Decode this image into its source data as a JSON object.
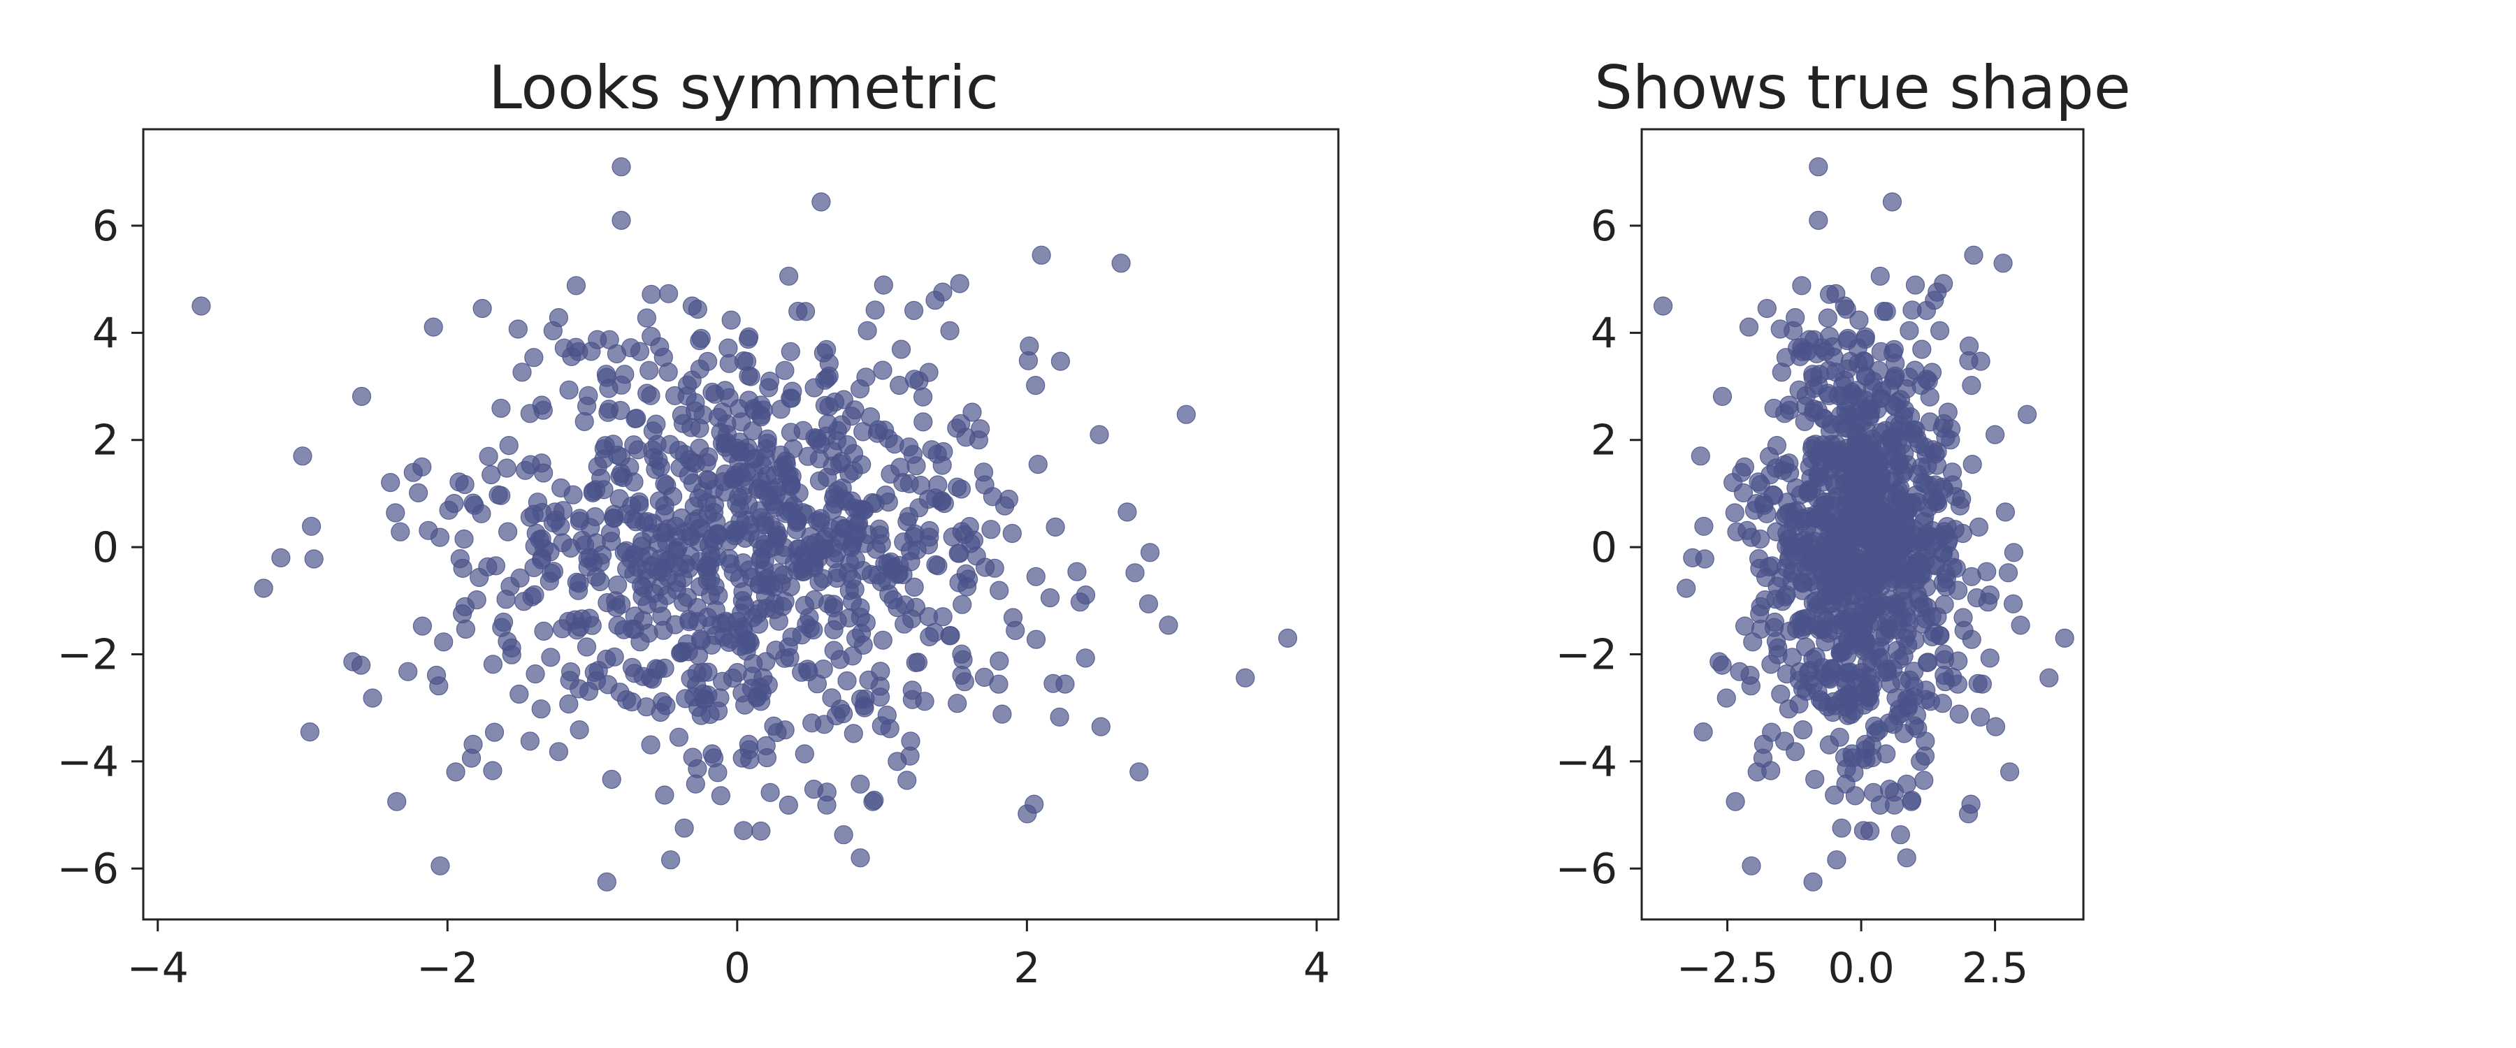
{
  "chart_data": [
    {
      "type": "scatter",
      "title": "Looks symmetric",
      "xlabel": "",
      "ylabel": "",
      "xlim": [
        -4.1,
        4.15
      ],
      "ylim": [
        -6.95,
        7.8
      ],
      "xticks": [
        -4,
        -2,
        0,
        2,
        4
      ],
      "xtick_labels": [
        "−4",
        "−2",
        "0",
        "2",
        "4"
      ],
      "yticks": [
        -6,
        -4,
        -2,
        0,
        2,
        4,
        6
      ],
      "ytick_labels": [
        "−6",
        "−4",
        "−2",
        "0",
        "2",
        "4",
        "6"
      ],
      "aspect": "auto",
      "grid": false,
      "marker_color": "#4a5289",
      "n_points": 1000,
      "point_distribution": "bivariate normal, mean (0, 0), sd_x ≈ 1.0, sd_y ≈ 2.0",
      "outliers": [
        {
          "x": -3.7,
          "y": 4.5
        },
        {
          "x": -0.8,
          "y": 7.1
        },
        {
          "x": -0.8,
          "y": 6.1
        },
        {
          "x": 3.8,
          "y": -1.7
        },
        {
          "x": 2.85,
          "y": -0.1
        },
        {
          "x": -3.15,
          "y": -0.2
        },
        {
          "x": -3.0,
          "y": 1.7
        },
        {
          "x": -2.95,
          "y": -3.45
        },
        {
          "x": -2.05,
          "y": -5.95
        },
        {
          "x": -0.9,
          "y": -6.25
        },
        {
          "x": 2.1,
          "y": 5.45
        },
        {
          "x": 2.65,
          "y": 5.3
        },
        {
          "x": 0.85,
          "y": -5.8
        },
        {
          "x": -2.35,
          "y": -4.75
        },
        {
          "x": 2.5,
          "y": 2.1
        },
        {
          "x": 2.05,
          "y": -4.8
        }
      ]
    },
    {
      "type": "scatter",
      "title": "Shows true shape",
      "xlabel": "",
      "ylabel": "",
      "xlim": [
        -4.1,
        4.15
      ],
      "ylim": [
        -6.95,
        7.8
      ],
      "xticks": [
        -2.5,
        0.0,
        2.5
      ],
      "xtick_labels": [
        "−2.5",
        "0.0",
        "2.5"
      ],
      "yticks": [
        -6,
        -4,
        -2,
        0,
        2,
        4,
        6
      ],
      "ytick_labels": [
        "−6",
        "−4",
        "−2",
        "0",
        "2",
        "4",
        "6"
      ],
      "aspect": "equal",
      "grid": false,
      "marker_color": "#4a5289",
      "same_data_as_left": true
    }
  ]
}
